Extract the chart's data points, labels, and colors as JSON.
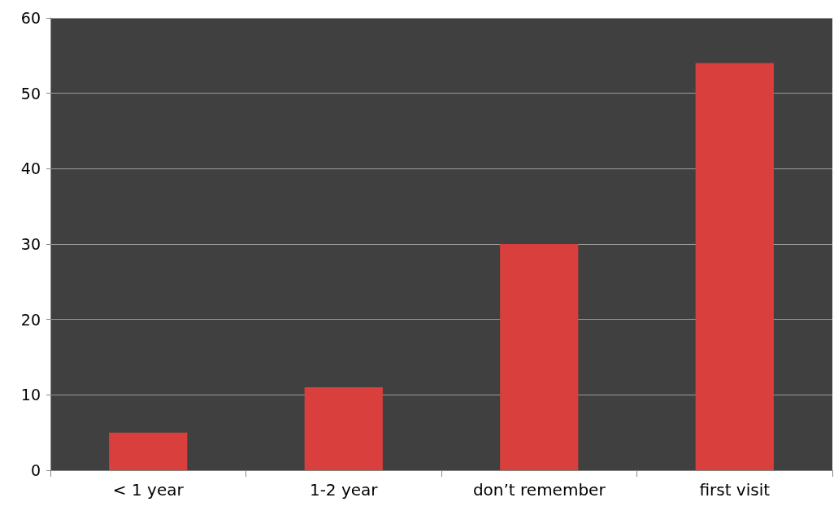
{
  "chart_data": {
    "type": "bar",
    "categories": [
      "< 1 year",
      "1-2 year",
      "don’t remember",
      "first visit"
    ],
    "values": [
      5,
      11,
      30,
      54
    ],
    "color": "#d9403d",
    "ylim": [
      0,
      60
    ],
    "yticks": [
      0,
      10,
      20,
      30,
      40,
      50,
      60
    ],
    "grid": "y"
  }
}
